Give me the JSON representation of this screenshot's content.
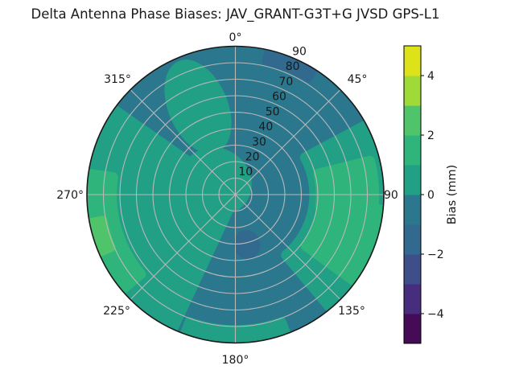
{
  "chart_data": {
    "type": "heatmap",
    "projection": "polar",
    "title": "Delta Antenna Phase Biases: JAV_GRANT-G3T+G JVSD GPS-L1",
    "angular_ticks": {
      "angles_deg": [
        0,
        45,
        90,
        135,
        180,
        225,
        270,
        315
      ],
      "labels": [
        "0°",
        "45°",
        "90",
        "135°",
        "180°",
        "225°",
        "270°",
        "315°"
      ]
    },
    "radial_ticks": [
      10,
      20,
      30,
      40,
      50,
      60,
      70,
      80,
      90
    ],
    "radial_range": [
      0,
      90
    ],
    "grid": true,
    "grid_color": "#b8b8b8",
    "colorbar": {
      "label": "Bias (mm)",
      "min": -5,
      "max": 5,
      "tick_values": [
        -4,
        -2,
        0,
        2,
        4
      ],
      "tick_labels": [
        "−4",
        "−2",
        "0",
        "2",
        "4"
      ],
      "n_segments": 10,
      "segment_colors": [
        "#450b57",
        "#472d7d",
        "#3d4e8a",
        "#32698e",
        "#2b788e",
        "#22a086",
        "#2fb47c",
        "#50c46a",
        "#a0da39",
        "#dde318"
      ]
    },
    "regions": [
      {
        "shape": "disc",
        "level": [
          -1,
          0
        ],
        "note": "background bias -1..0 mm over most of sky"
      },
      {
        "shape": "sector",
        "theta": [
          205,
          305
        ],
        "r": [
          0,
          90
        ],
        "level": [
          0,
          1
        ],
        "note": "broad 0..1 mm sector over west/southwest"
      },
      {
        "shape": "spot",
        "theta": 337,
        "r": 58,
        "radial": 30,
        "tangential": 18,
        "level": [
          0,
          1
        ],
        "note": "0..1 mm blob northwest mid-elevation"
      },
      {
        "shape": "spot",
        "theta": 305,
        "r": 14,
        "radial": 22,
        "tangential": 20,
        "level": [
          0,
          1
        ],
        "note": "0..1 mm around zenith"
      },
      {
        "shape": "sector",
        "theta": [
          62,
          140
        ],
        "r": [
          48,
          90
        ],
        "level": [
          0,
          1
        ],
        "note": "0..1 mm band low elevation east-southeast"
      },
      {
        "shape": "sector",
        "theta": [
          160,
          200
        ],
        "r": [
          82,
          90
        ],
        "level": [
          0,
          1
        ],
        "note": "thin 0..1 mm sliver at south horizon"
      },
      {
        "shape": "sector",
        "theta": [
          230,
          278
        ],
        "r": [
          75,
          90
        ],
        "level": [
          1,
          2
        ],
        "note": "1..2 mm strip at west horizon"
      },
      {
        "shape": "sector",
        "theta": [
          96,
          126
        ],
        "r": [
          53,
          90
        ],
        "level": [
          1,
          2
        ],
        "note": "1..2 mm blob at southeast horizon"
      },
      {
        "shape": "sector",
        "theta": [
          76,
          98
        ],
        "r": [
          52,
          84
        ],
        "level": [
          1,
          2
        ],
        "note": "1..2 mm extension toward east"
      },
      {
        "shape": "sector",
        "theta": [
          247,
          259
        ],
        "r": [
          82,
          90
        ],
        "level": [
          2,
          3
        ],
        "note": "2..3 mm sliver at west horizon"
      },
      {
        "shape": "spot",
        "theta": 167,
        "r": 31,
        "radial": 9,
        "tangential": 8,
        "level": [
          -2,
          -1
        ],
        "note": "-2..-1 mm spot south of zenith"
      },
      {
        "shape": "sector",
        "theta": [
          13,
          32
        ],
        "r": [
          83,
          90
        ],
        "level": [
          -2,
          -1
        ],
        "note": "-2..-1 mm sliver at north-northeast horizon"
      }
    ]
  }
}
